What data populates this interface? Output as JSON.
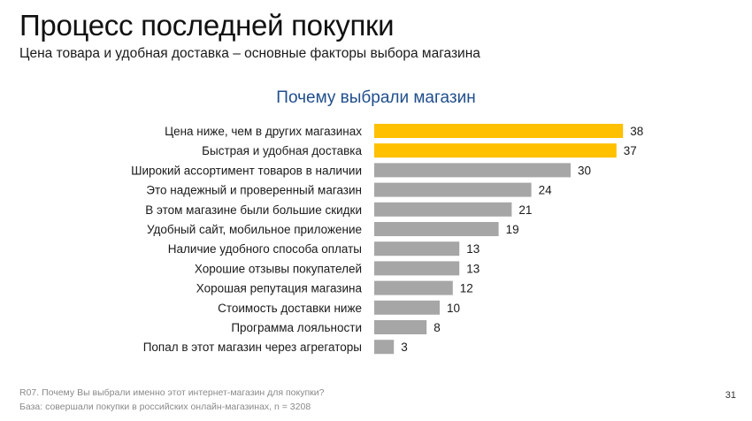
{
  "header": {
    "title": "Процесс последней покупки",
    "subtitle": "Цена товара и удобная доставка – основные факторы выбора магазина"
  },
  "chart_data": {
    "type": "bar",
    "orientation": "horizontal",
    "title": "Почему выбрали магазин",
    "categories": [
      "Цена ниже, чем в других магазинах",
      "Быстрая и удобная доставка",
      "Широкий ассортимент товаров в наличии",
      "Это надежный и проверенный магазин",
      "В этом магазине были большие скидки",
      "Удобный сайт, мобильное приложение",
      "Наличие удобного способа оплаты",
      "Хорошие отзывы покупателей",
      "Хорошая репутация магазина",
      "Стоимость доставки ниже",
      "Программа лояльности",
      "Попал в этот магазин через агрегаторы"
    ],
    "values": [
      38,
      37,
      30,
      24,
      21,
      19,
      13,
      13,
      12,
      10,
      8,
      3
    ],
    "highlight_top": 2,
    "colors": {
      "highlight": "#FFC000",
      "default": "#A6A6A6",
      "title": "#1F4E8C"
    },
    "xlim": [
      0,
      45
    ],
    "grid": false,
    "legend": "none"
  },
  "footer": {
    "question": "R07. Почему Вы выбрали именно этот интернет-магазин для покупки?",
    "base": "База: совершали покупки в российских онлайн-магазинах, n = 3208",
    "page_number": "31"
  }
}
